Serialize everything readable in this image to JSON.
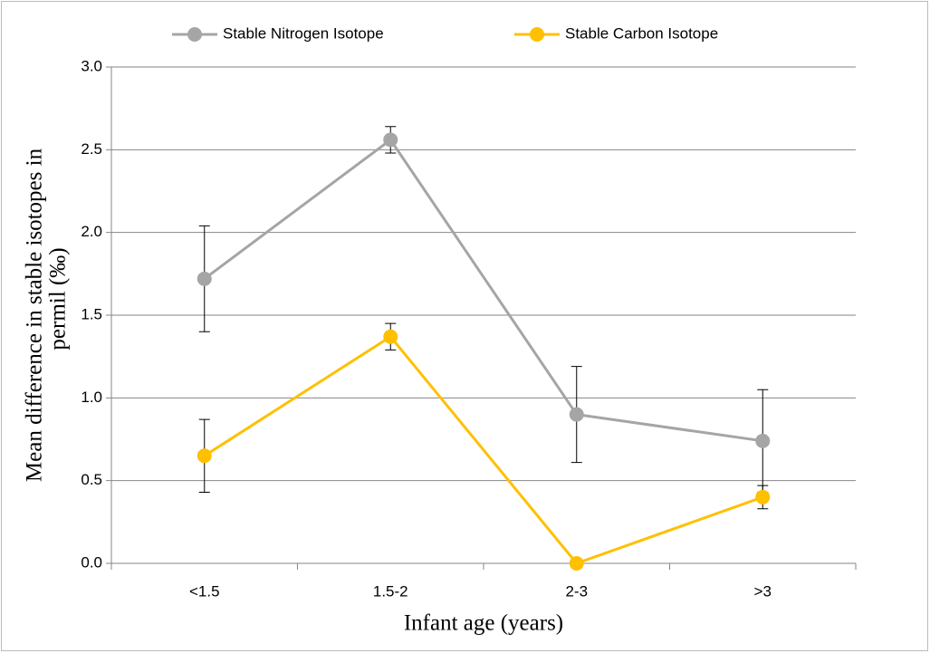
{
  "chart_data": {
    "type": "line",
    "xlabel": "Infant age (years)",
    "ylabel": [
      "Mean difference in stable isotopes in",
      "permil (‰)"
    ],
    "categories": [
      "<1.5",
      "1.5-2",
      "2-3",
      ">3"
    ],
    "series": [
      {
        "name": "Stable Nitrogen Isotope",
        "color": "#a5a5a5",
        "values": [
          1.72,
          2.56,
          0.9,
          0.74
        ],
        "errors": [
          0.32,
          0.08,
          0.29,
          0.31
        ]
      },
      {
        "name": "Stable Carbon Isotope",
        "color": "#ffc000",
        "values": [
          0.65,
          1.37,
          0,
          0.4
        ],
        "errors": [
          0.22,
          0.08,
          0,
          0.07
        ]
      }
    ],
    "ylim": [
      0,
      3
    ],
    "yticks": [
      {
        "value": 0,
        "label": "0.0"
      },
      {
        "value": 0.5,
        "label": "0.5"
      },
      {
        "value": 1,
        "label": "1.0"
      },
      {
        "value": 1.5,
        "label": "1.5"
      },
      {
        "value": 2,
        "label": "2.0"
      },
      {
        "value": 2.5,
        "label": "2.5"
      },
      {
        "value": 3,
        "label": "3.0"
      }
    ],
    "grid": true,
    "legend": "top"
  }
}
